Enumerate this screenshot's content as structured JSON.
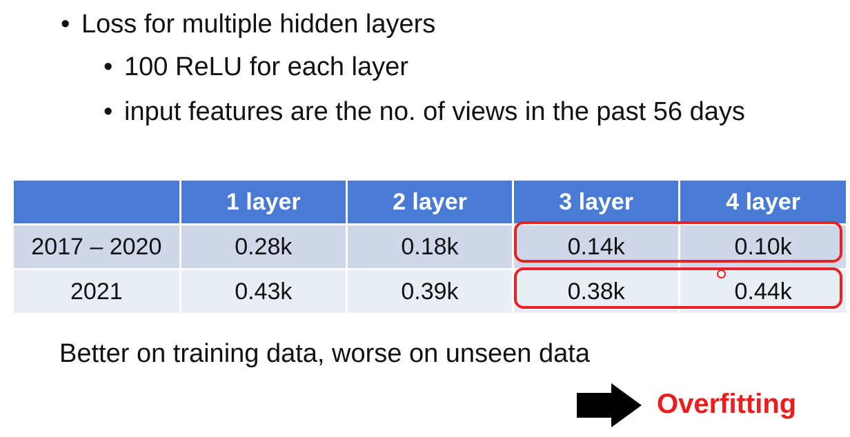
{
  "bullets": {
    "main": "Loss for multiple hidden layers",
    "sub": [
      "100 ReLU for each layer",
      "input features are the no. of views in the past 56 days"
    ]
  },
  "table": {
    "headers": [
      "",
      "1 layer",
      "2 layer",
      "3 layer",
      "4 layer"
    ],
    "rows": [
      [
        "2017 – 2020",
        "0.28k",
        "0.18k",
        "0.14k",
        "0.10k"
      ],
      [
        "2021",
        "0.43k",
        "0.39k",
        "0.38k",
        "0.44k"
      ]
    ]
  },
  "summary": "Better on training data, worse on unseen data",
  "conclusion": "Overfitting",
  "colors": {
    "header_bg": "#4a7bd4",
    "row1_bg": "#cfd7e8",
    "row2_bg": "#e9edf4",
    "highlight": "#e8231f",
    "conclusion": "#ee1c1c"
  },
  "icons": {
    "arrow": "right-arrow-icon"
  }
}
